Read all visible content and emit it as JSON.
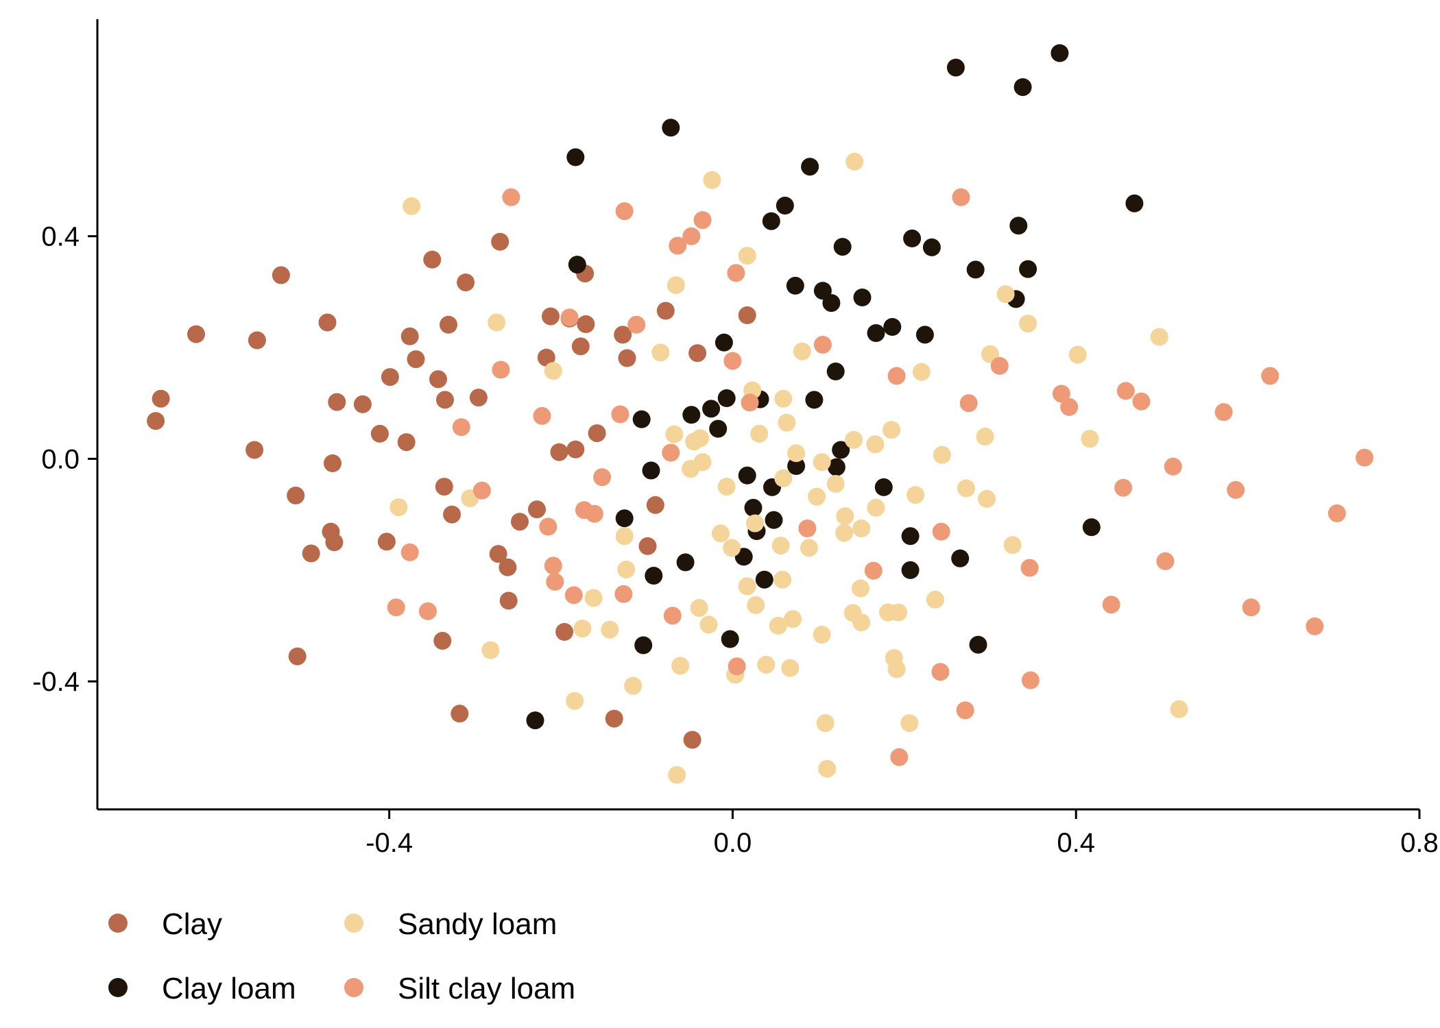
{
  "chart_data": {
    "type": "scatter",
    "title": "",
    "xlabel": "",
    "ylabel": "",
    "xlim": [
      -0.74,
      0.8
    ],
    "ylim": [
      -0.63,
      0.79
    ],
    "x_ticks": [
      -0.4,
      0.0,
      0.4,
      0.8
    ],
    "x_tick_labels": [
      "-0.4",
      "0.0",
      "0.4",
      "0.8"
    ],
    "y_ticks": [
      -0.4,
      0.0,
      0.4
    ],
    "y_tick_labels": [
      "-0.4",
      "0.0",
      "0.4"
    ],
    "grid": false,
    "legend_position": "bottom-left",
    "series": [
      {
        "name": "Clay",
        "color": "#B8694A",
        "points": [
          [
            -0.672,
            0.068
          ],
          [
            -0.666,
            0.108
          ],
          [
            -0.625,
            0.224
          ],
          [
            -0.557,
            0.016
          ],
          [
            -0.554,
            0.213
          ],
          [
            -0.526,
            0.33
          ],
          [
            -0.509,
            -0.066
          ],
          [
            -0.507,
            -0.355
          ],
          [
            -0.491,
            -0.17
          ],
          [
            -0.472,
            0.245
          ],
          [
            -0.468,
            -0.131
          ],
          [
            -0.466,
            -0.008
          ],
          [
            -0.464,
            -0.15
          ],
          [
            -0.461,
            0.102
          ],
          [
            -0.431,
            0.098
          ],
          [
            -0.411,
            0.045
          ],
          [
            -0.403,
            -0.149
          ],
          [
            -0.399,
            0.147
          ],
          [
            -0.38,
            0.03
          ],
          [
            -0.376,
            0.22
          ],
          [
            -0.369,
            0.179
          ],
          [
            -0.35,
            0.358
          ],
          [
            -0.343,
            0.143
          ],
          [
            -0.338,
            -0.327
          ],
          [
            -0.336,
            -0.05
          ],
          [
            -0.335,
            0.106
          ],
          [
            -0.331,
            0.241
          ],
          [
            -0.327,
            -0.1
          ],
          [
            -0.318,
            -0.458
          ],
          [
            -0.311,
            0.317
          ],
          [
            -0.296,
            0.11
          ],
          [
            -0.273,
            -0.171
          ],
          [
            -0.271,
            0.39
          ],
          [
            -0.262,
            -0.195
          ],
          [
            -0.261,
            -0.255
          ],
          [
            -0.248,
            -0.113
          ],
          [
            -0.228,
            -0.091
          ],
          [
            -0.217,
            0.182
          ],
          [
            -0.212,
            0.256
          ],
          [
            -0.202,
            0.012
          ],
          [
            -0.196,
            -0.311
          ],
          [
            -0.19,
            0.252
          ],
          [
            -0.183,
            0.017
          ],
          [
            -0.177,
            0.202
          ],
          [
            -0.172,
            0.333
          ],
          [
            -0.171,
            0.242
          ],
          [
            -0.158,
            0.046
          ],
          [
            -0.138,
            -0.467
          ],
          [
            -0.128,
            0.223
          ],
          [
            -0.123,
            0.181
          ],
          [
            -0.099,
            -0.157
          ],
          [
            -0.09,
            -0.083
          ],
          [
            -0.078,
            0.266
          ],
          [
            -0.047,
            -0.505
          ],
          [
            -0.041,
            0.19
          ],
          [
            0.017,
            0.258
          ]
        ]
      },
      {
        "name": "Clay loam",
        "color": "#1E140A",
        "points": [
          [
            -0.23,
            -0.47
          ],
          [
            -0.183,
            0.542
          ],
          [
            -0.181,
            0.349
          ],
          [
            -0.126,
            -0.107
          ],
          [
            -0.106,
            0.071
          ],
          [
            -0.104,
            -0.335
          ],
          [
            -0.095,
            -0.021
          ],
          [
            -0.092,
            -0.21
          ],
          [
            -0.072,
            0.595
          ],
          [
            -0.055,
            -0.186
          ],
          [
            -0.048,
            0.079
          ],
          [
            -0.025,
            0.09
          ],
          [
            -0.017,
            0.054
          ],
          [
            -0.01,
            0.209
          ],
          [
            -0.007,
            0.109
          ],
          [
            -0.003,
            -0.324
          ],
          [
            0.013,
            -0.176
          ],
          [
            0.017,
            -0.03
          ],
          [
            0.024,
            -0.088
          ],
          [
            0.028,
            -0.13
          ],
          [
            0.032,
            0.107
          ],
          [
            0.037,
            -0.217
          ],
          [
            0.045,
            0.427
          ],
          [
            0.046,
            -0.051
          ],
          [
            0.048,
            -0.11
          ],
          [
            0.061,
            0.455
          ],
          [
            0.073,
            0.311
          ],
          [
            0.074,
            -0.013
          ],
          [
            0.09,
            0.525
          ],
          [
            0.095,
            0.106
          ],
          [
            0.105,
            0.302
          ],
          [
            0.115,
            0.28
          ],
          [
            0.12,
            0.157
          ],
          [
            0.121,
            -0.015
          ],
          [
            0.126,
            0.016
          ],
          [
            0.128,
            0.381
          ],
          [
            0.151,
            0.29
          ],
          [
            0.167,
            0.226
          ],
          [
            0.176,
            -0.051
          ],
          [
            0.186,
            0.237
          ],
          [
            0.207,
            -0.139
          ],
          [
            0.207,
            -0.2
          ],
          [
            0.209,
            0.396
          ],
          [
            0.224,
            0.223
          ],
          [
            0.232,
            0.38
          ],
          [
            0.26,
            0.703
          ],
          [
            0.265,
            -0.179
          ],
          [
            0.283,
            0.34
          ],
          [
            0.286,
            -0.334
          ],
          [
            0.33,
            0.287
          ],
          [
            0.333,
            0.419
          ],
          [
            0.338,
            0.668
          ],
          [
            0.344,
            0.341
          ],
          [
            0.381,
            0.729
          ],
          [
            0.418,
            -0.123
          ],
          [
            0.468,
            0.459
          ]
        ]
      },
      {
        "name": "Sandy loam",
        "color": "#F4D498",
        "points": [
          [
            -0.374,
            0.454
          ],
          [
            -0.389,
            -0.087
          ],
          [
            -0.282,
            -0.344
          ],
          [
            -0.275,
            0.245
          ],
          [
            -0.306,
            -0.071
          ],
          [
            -0.209,
            0.158
          ],
          [
            -0.184,
            -0.435
          ],
          [
            -0.175,
            -0.305
          ],
          [
            -0.162,
            -0.25
          ],
          [
            -0.143,
            -0.307
          ],
          [
            -0.126,
            -0.139
          ],
          [
            -0.124,
            -0.199
          ],
          [
            -0.116,
            -0.408
          ],
          [
            -0.084,
            0.191
          ],
          [
            -0.068,
            0.044
          ],
          [
            -0.066,
            0.312
          ],
          [
            -0.061,
            -0.372
          ],
          [
            -0.049,
            -0.018
          ],
          [
            -0.045,
            0.031
          ],
          [
            -0.039,
            -0.268
          ],
          [
            -0.038,
            0.037
          ],
          [
            -0.035,
            -0.006
          ],
          [
            -0.028,
            -0.298
          ],
          [
            -0.024,
            0.501
          ],
          [
            -0.014,
            -0.134
          ],
          [
            -0.007,
            -0.05
          ],
          [
            -0.001,
            -0.16
          ],
          [
            0.003,
            -0.388
          ],
          [
            0.017,
            0.365
          ],
          [
            0.017,
            -0.229
          ],
          [
            0.023,
            0.123
          ],
          [
            0.026,
            -0.116
          ],
          [
            0.027,
            -0.263
          ],
          [
            0.031,
            0.045
          ],
          [
            0.039,
            -0.37
          ],
          [
            0.053,
            -0.3
          ],
          [
            0.056,
            -0.156
          ],
          [
            0.058,
            -0.217
          ],
          [
            0.059,
            -0.035
          ],
          [
            0.059,
            0.108
          ],
          [
            0.063,
            0.065
          ],
          [
            0.067,
            -0.376
          ],
          [
            0.07,
            -0.288
          ],
          [
            0.074,
            0.01
          ],
          [
            0.081,
            0.193
          ],
          [
            0.089,
            -0.16
          ],
          [
            0.098,
            -0.068
          ],
          [
            0.104,
            -0.316
          ],
          [
            0.104,
            -0.006
          ],
          [
            0.108,
            -0.475
          ],
          [
            0.11,
            -0.557
          ],
          [
            0.12,
            -0.045
          ],
          [
            0.13,
            -0.133
          ],
          [
            0.131,
            -0.103
          ],
          [
            0.14,
            -0.277
          ],
          [
            0.141,
            0.034
          ],
          [
            0.142,
            0.534
          ],
          [
            0.149,
            -0.233
          ],
          [
            0.15,
            -0.294
          ],
          [
            0.15,
            -0.125
          ],
          [
            0.166,
            0.026
          ],
          [
            0.167,
            -0.088
          ],
          [
            0.181,
            -0.276
          ],
          [
            0.185,
            0.052
          ],
          [
            0.188,
            -0.358
          ],
          [
            0.191,
            -0.378
          ],
          [
            0.193,
            -0.276
          ],
          [
            0.206,
            -0.475
          ],
          [
            0.213,
            -0.065
          ],
          [
            0.22,
            0.156
          ],
          [
            0.236,
            -0.253
          ],
          [
            0.244,
            0.007
          ],
          [
            0.272,
            -0.053
          ],
          [
            0.294,
            0.04
          ],
          [
            0.296,
            -0.072
          ],
          [
            0.3,
            0.188
          ],
          [
            0.318,
            0.296
          ],
          [
            0.326,
            -0.155
          ],
          [
            0.344,
            0.243
          ],
          [
            0.402,
            0.187
          ],
          [
            0.416,
            0.036
          ],
          [
            0.497,
            0.219
          ],
          [
            0.52,
            -0.45
          ],
          [
            -0.065,
            -0.568
          ]
        ]
      },
      {
        "name": "Silt clay loam",
        "color": "#EE9A76",
        "points": [
          [
            -0.376,
            -0.168
          ],
          [
            -0.392,
            -0.267
          ],
          [
            -0.355,
            -0.274
          ],
          [
            -0.316,
            0.057
          ],
          [
            -0.292,
            -0.057
          ],
          [
            -0.27,
            0.16
          ],
          [
            -0.258,
            0.47
          ],
          [
            -0.222,
            0.077
          ],
          [
            -0.215,
            -0.122
          ],
          [
            -0.209,
            -0.192
          ],
          [
            -0.207,
            -0.221
          ],
          [
            -0.19,
            0.254
          ],
          [
            -0.185,
            -0.245
          ],
          [
            -0.173,
            -0.092
          ],
          [
            -0.161,
            -0.099
          ],
          [
            -0.152,
            -0.033
          ],
          [
            -0.131,
            0.08
          ],
          [
            -0.127,
            -0.243
          ],
          [
            -0.126,
            0.445
          ],
          [
            -0.112,
            0.241
          ],
          [
            -0.072,
            0.011
          ],
          [
            -0.07,
            -0.282
          ],
          [
            -0.064,
            0.383
          ],
          [
            -0.048,
            0.4
          ],
          [
            -0.035,
            0.429
          ],
          [
            0.0,
            0.176
          ],
          [
            0.004,
            0.334
          ],
          [
            0.005,
            -0.373
          ],
          [
            0.02,
            0.101
          ],
          [
            0.087,
            -0.125
          ],
          [
            0.105,
            0.205
          ],
          [
            0.164,
            -0.201
          ],
          [
            0.191,
            0.149
          ],
          [
            0.194,
            -0.536
          ],
          [
            0.242,
            -0.383
          ],
          [
            0.243,
            -0.131
          ],
          [
            0.266,
            0.47
          ],
          [
            0.271,
            -0.452
          ],
          [
            0.275,
            0.1
          ],
          [
            0.311,
            0.167
          ],
          [
            0.346,
            -0.196
          ],
          [
            0.347,
            -0.398
          ],
          [
            0.383,
            0.117
          ],
          [
            0.392,
            0.093
          ],
          [
            0.441,
            -0.262
          ],
          [
            0.455,
            -0.052
          ],
          [
            0.458,
            0.122
          ],
          [
            0.476,
            0.103
          ],
          [
            0.504,
            -0.184
          ],
          [
            0.513,
            -0.014
          ],
          [
            0.572,
            0.084
          ],
          [
            0.586,
            -0.056
          ],
          [
            0.604,
            -0.267
          ],
          [
            0.626,
            0.149
          ],
          [
            0.678,
            -0.301
          ],
          [
            0.704,
            -0.098
          ],
          [
            0.736,
            0.002
          ]
        ]
      }
    ]
  }
}
